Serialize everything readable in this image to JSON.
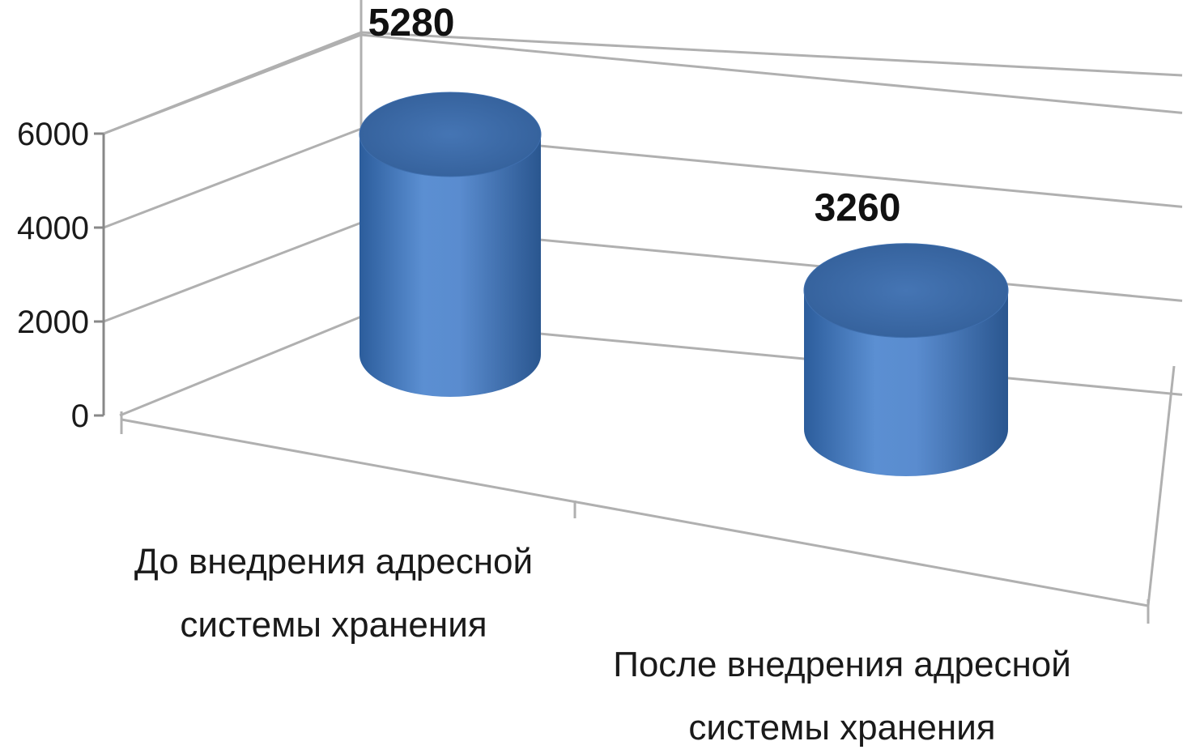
{
  "chart_data": {
    "type": "bar",
    "style": "3d-cylinder",
    "categories": [
      [
        "До внедрения адресной",
        "системы хранения"
      ],
      [
        "После внедрения адресной",
        "системы хранения"
      ]
    ],
    "values": [
      5280,
      3260
    ],
    "data_labels": [
      "5280",
      "3260"
    ],
    "title": "",
    "xlabel": "",
    "ylabel": "",
    "ylim": [
      0,
      6000
    ],
    "yticks": [
      0,
      2000,
      4000,
      6000
    ],
    "ytick_labels": [
      "0",
      "2000",
      "4000",
      "6000"
    ],
    "grid": true,
    "legend": "none",
    "colors": {
      "bar": "#4f81bd",
      "bar_dark": "#2a5a95",
      "bar_light": "#6c9bd6",
      "gridline": "#b0b0b0"
    }
  }
}
